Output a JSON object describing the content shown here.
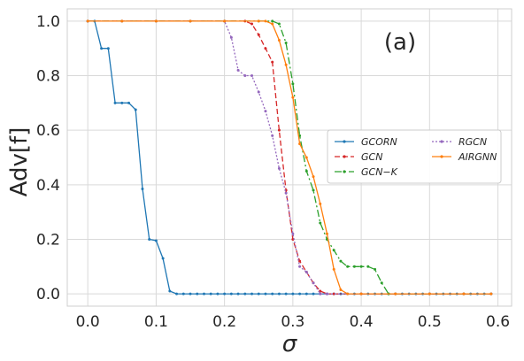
{
  "chart_data": {
    "type": "line",
    "title": "",
    "annotation": "(a)",
    "xlabel": "σ",
    "ylabel": "Adv[f]",
    "xlim": [
      -0.03,
      0.62
    ],
    "ylim": [
      -0.045,
      1.045
    ],
    "xticks": [
      0.0,
      0.1,
      0.2,
      0.3,
      0.4,
      0.5,
      0.6
    ],
    "xtick_labels": [
      "0.0",
      "0.1",
      "0.2",
      "0.3",
      "0.4",
      "0.5",
      "0.6"
    ],
    "yticks": [
      0.0,
      0.2,
      0.4,
      0.6,
      0.8,
      1.0
    ],
    "ytick_labels": [
      "0.0",
      "0.2",
      "0.4",
      "0.6",
      "0.8",
      "1.0"
    ],
    "grid": true,
    "legend_position": "center-right",
    "series": [
      {
        "name": "GCORN",
        "color": "#1f77b4",
        "dash": "solid",
        "points": [
          [
            0.0,
            1.0
          ],
          [
            0.01,
            1.0
          ],
          [
            0.02,
            0.9
          ],
          [
            0.03,
            0.9
          ],
          [
            0.04,
            0.7
          ],
          [
            0.05,
            0.7
          ],
          [
            0.06,
            0.7
          ],
          [
            0.07,
            0.675
          ],
          [
            0.08,
            0.385
          ],
          [
            0.09,
            0.2
          ],
          [
            0.1,
            0.195
          ],
          [
            0.11,
            0.13
          ],
          [
            0.12,
            0.01
          ],
          [
            0.13,
            0.0
          ],
          [
            0.14,
            0.0
          ],
          [
            0.15,
            0.0
          ],
          [
            0.16,
            0.0
          ],
          [
            0.17,
            0.0
          ],
          [
            0.18,
            0.0
          ],
          [
            0.19,
            0.0
          ],
          [
            0.2,
            0.0
          ],
          [
            0.21,
            0.0
          ],
          [
            0.22,
            0.0
          ],
          [
            0.23,
            0.0
          ],
          [
            0.24,
            0.0
          ],
          [
            0.25,
            0.0
          ],
          [
            0.26,
            0.0
          ],
          [
            0.27,
            0.0
          ],
          [
            0.28,
            0.0
          ],
          [
            0.29,
            0.0
          ],
          [
            0.3,
            0.0
          ],
          [
            0.31,
            0.0
          ],
          [
            0.32,
            0.0
          ],
          [
            0.33,
            0.0
          ],
          [
            0.34,
            0.0
          ],
          [
            0.35,
            0.0
          ],
          [
            0.36,
            0.0
          ],
          [
            0.37,
            0.0
          ],
          [
            0.38,
            0.0
          ],
          [
            0.39,
            0.0
          ],
          [
            0.4,
            0.0
          ],
          [
            0.41,
            0.0
          ],
          [
            0.42,
            0.0
          ],
          [
            0.43,
            0.0
          ],
          [
            0.44,
            0.0
          ],
          [
            0.45,
            0.0
          ],
          [
            0.46,
            0.0
          ],
          [
            0.47,
            0.0
          ],
          [
            0.48,
            0.0
          ],
          [
            0.49,
            0.0
          ],
          [
            0.5,
            0.0
          ],
          [
            0.51,
            0.0
          ],
          [
            0.52,
            0.0
          ],
          [
            0.53,
            0.0
          ],
          [
            0.54,
            0.0
          ],
          [
            0.55,
            0.0
          ],
          [
            0.56,
            0.0
          ],
          [
            0.57,
            0.0
          ],
          [
            0.58,
            0.0
          ],
          [
            0.59,
            0.0
          ]
        ]
      },
      {
        "name": "GCN",
        "color": "#d62728",
        "dash": "6,3",
        "points": [
          [
            0.0,
            1.0
          ],
          [
            0.05,
            1.0
          ],
          [
            0.1,
            1.0
          ],
          [
            0.15,
            1.0
          ],
          [
            0.2,
            1.0
          ],
          [
            0.23,
            1.0
          ],
          [
            0.24,
            0.99
          ],
          [
            0.25,
            0.95
          ],
          [
            0.26,
            0.9
          ],
          [
            0.27,
            0.85
          ],
          [
            0.28,
            0.6
          ],
          [
            0.29,
            0.38
          ],
          [
            0.3,
            0.2
          ],
          [
            0.31,
            0.12
          ],
          [
            0.32,
            0.08
          ],
          [
            0.33,
            0.04
          ],
          [
            0.34,
            0.01
          ],
          [
            0.35,
            0.0
          ],
          [
            0.36,
            0.0
          ],
          [
            0.4,
            0.0
          ],
          [
            0.45,
            0.0
          ],
          [
            0.5,
            0.0
          ],
          [
            0.55,
            0.0
          ],
          [
            0.59,
            0.0
          ]
        ]
      },
      {
        "name": "GCN−K",
        "color": "#2ca02c",
        "dash": "8,3,2,3",
        "points": [
          [
            0.0,
            1.0
          ],
          [
            0.05,
            1.0
          ],
          [
            0.1,
            1.0
          ],
          [
            0.15,
            1.0
          ],
          [
            0.2,
            1.0
          ],
          [
            0.25,
            1.0
          ],
          [
            0.27,
            1.0
          ],
          [
            0.28,
            0.99
          ],
          [
            0.29,
            0.92
          ],
          [
            0.3,
            0.77
          ],
          [
            0.31,
            0.58
          ],
          [
            0.32,
            0.45
          ],
          [
            0.33,
            0.38
          ],
          [
            0.34,
            0.26
          ],
          [
            0.35,
            0.2
          ],
          [
            0.36,
            0.16
          ],
          [
            0.37,
            0.12
          ],
          [
            0.38,
            0.1
          ],
          [
            0.39,
            0.1
          ],
          [
            0.4,
            0.1
          ],
          [
            0.41,
            0.1
          ],
          [
            0.42,
            0.09
          ],
          [
            0.43,
            0.04
          ],
          [
            0.44,
            0.0
          ],
          [
            0.45,
            0.0
          ],
          [
            0.5,
            0.0
          ],
          [
            0.55,
            0.0
          ],
          [
            0.59,
            0.0
          ]
        ]
      },
      {
        "name": "RGCN",
        "color": "#9467bd",
        "dash": "2,2",
        "points": [
          [
            0.0,
            1.0
          ],
          [
            0.05,
            1.0
          ],
          [
            0.1,
            1.0
          ],
          [
            0.15,
            1.0
          ],
          [
            0.2,
            1.0
          ],
          [
            0.21,
            0.94
          ],
          [
            0.22,
            0.82
          ],
          [
            0.23,
            0.8
          ],
          [
            0.24,
            0.8
          ],
          [
            0.25,
            0.74
          ],
          [
            0.26,
            0.67
          ],
          [
            0.27,
            0.58
          ],
          [
            0.28,
            0.46
          ],
          [
            0.29,
            0.37
          ],
          [
            0.3,
            0.22
          ],
          [
            0.31,
            0.1
          ],
          [
            0.32,
            0.08
          ],
          [
            0.33,
            0.04
          ],
          [
            0.34,
            0.0
          ],
          [
            0.35,
            0.0
          ],
          [
            0.4,
            0.0
          ],
          [
            0.45,
            0.0
          ],
          [
            0.5,
            0.0
          ],
          [
            0.55,
            0.0
          ],
          [
            0.59,
            0.0
          ]
        ]
      },
      {
        "name": "AIRGNN",
        "color": "#ff7f0e",
        "dash": "solid",
        "points": [
          [
            0.0,
            1.0
          ],
          [
            0.05,
            1.0
          ],
          [
            0.1,
            1.0
          ],
          [
            0.15,
            1.0
          ],
          [
            0.2,
            1.0
          ],
          [
            0.25,
            1.0
          ],
          [
            0.26,
            1.0
          ],
          [
            0.27,
            0.99
          ],
          [
            0.28,
            0.93
          ],
          [
            0.29,
            0.84
          ],
          [
            0.3,
            0.72
          ],
          [
            0.31,
            0.55
          ],
          [
            0.32,
            0.5
          ],
          [
            0.33,
            0.43
          ],
          [
            0.34,
            0.33
          ],
          [
            0.35,
            0.22
          ],
          [
            0.36,
            0.09
          ],
          [
            0.37,
            0.015
          ],
          [
            0.38,
            0.0
          ],
          [
            0.4,
            0.0
          ],
          [
            0.45,
            0.0
          ],
          [
            0.5,
            0.0
          ],
          [
            0.55,
            0.0
          ],
          [
            0.59,
            0.0
          ]
        ]
      }
    ]
  }
}
